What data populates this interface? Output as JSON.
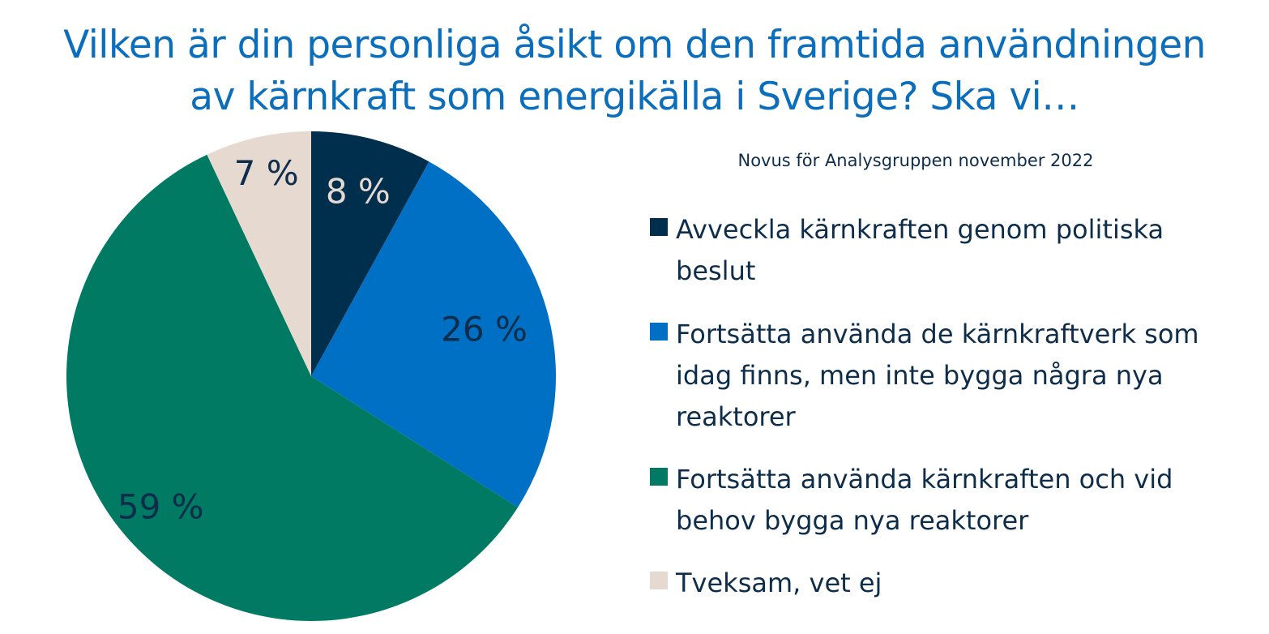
{
  "chart_data": {
    "type": "pie",
    "title_lines": [
      "Vilken är din personliga åsikt om den framtida användningen",
      "av kärnkraft som energikälla i Sverige? Ska vi…"
    ],
    "subtitle": "Novus för Analysgruppen november 2022",
    "slices": [
      {
        "label": "Avveckla kärnkraften genom politiska beslut",
        "value": 8,
        "display": "8 %",
        "color": "#002E4D",
        "label_color": "#E5D9D0"
      },
      {
        "label": "Fortsätta använda de kärnkraftverk som idag finns, men inte bygga några nya reaktorer",
        "value": 26,
        "display": "26 %",
        "color": "#0070C4",
        "label_color": "#0E2D4A"
      },
      {
        "label": "Fortsätta använda kärnkraften och vid behov bygga nya reaktorer",
        "value": 59,
        "display": "59 %",
        "color": "#007A62",
        "label_color": "#0E2D4A"
      },
      {
        "label": "Tveksam, vet ej",
        "value": 7,
        "display": "7 %",
        "color": "#E5D9D0",
        "label_color": "#0E2D4A"
      }
    ],
    "legend_position": "right"
  }
}
